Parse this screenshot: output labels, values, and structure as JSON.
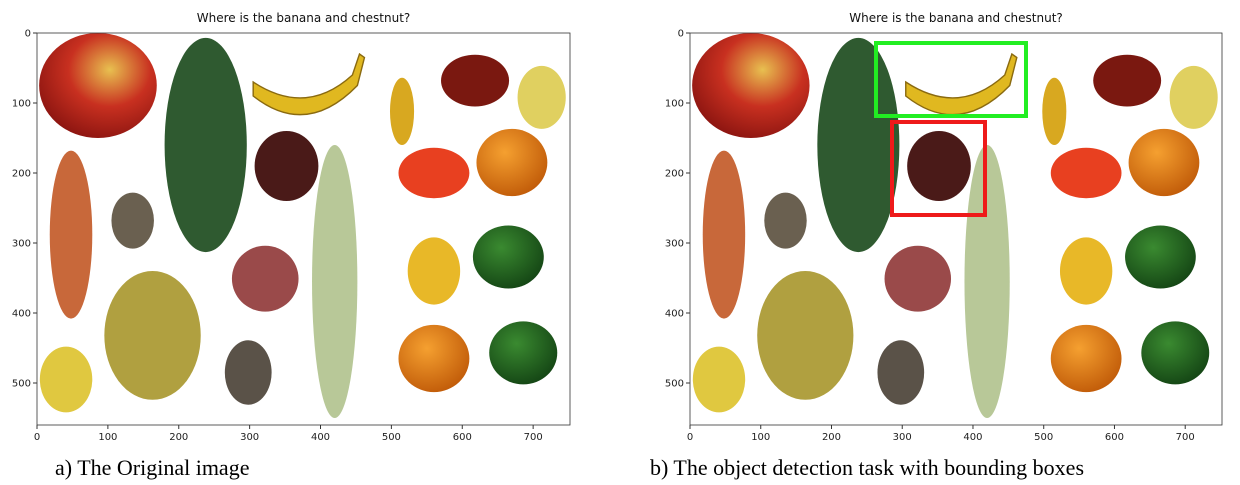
{
  "panels": [
    {
      "title": "Where is the banana and chestnut?",
      "caption": "a)  The Original image",
      "xlim": [
        0,
        752
      ],
      "ylim": [
        560,
        0
      ],
      "xticks": [
        0,
        100,
        200,
        300,
        400,
        500,
        600,
        700
      ],
      "yticks": [
        0,
        100,
        200,
        300,
        400,
        500
      ]
    },
    {
      "title": "Where is the banana and chestnut?",
      "caption": "b)  The object detection task with bounding boxes",
      "xlim": [
        0,
        752
      ],
      "ylim": [
        560,
        0
      ],
      "xticks": [
        0,
        100,
        200,
        300,
        400,
        500,
        600,
        700
      ],
      "yticks": [
        0,
        100,
        200,
        300,
        400,
        500
      ]
    }
  ]
}
